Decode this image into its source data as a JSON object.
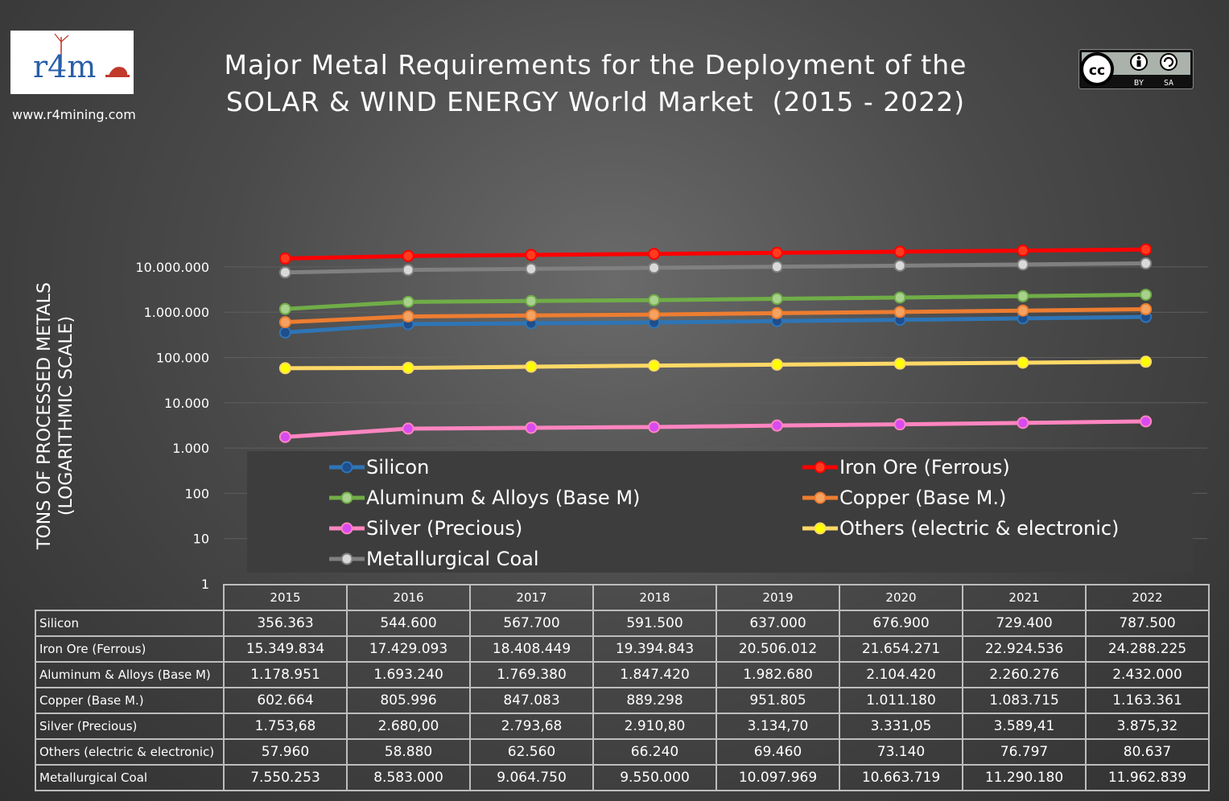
{
  "header": {
    "logo_text": "r4m",
    "website": "www.r4mining.com",
    "title_line1": "Major Metal Requirements for the Deployment of the",
    "title_line2": "SOLAR & WIND ENERGY World Market  (2015 - 2022)",
    "license_text_by": "BY",
    "license_text_sa": "SA"
  },
  "chart_data": {
    "type": "line",
    "title": "Major Metal Requirements for the Deployment of the SOLAR & WIND ENERGY World Market  (2015 - 2022)",
    "ylabel_line1": "TONS OF PROCESSED METALS",
    "ylabel_line2": "(LOGARITHMIC SCALE)",
    "yscale": "log",
    "ylim": [
      1,
      100000000
    ],
    "y_ticks": [
      {
        "value": 1,
        "label": "1"
      },
      {
        "value": 10,
        "label": "10"
      },
      {
        "value": 100,
        "label": "100"
      },
      {
        "value": 1000,
        "label": "1.000"
      },
      {
        "value": 10000,
        "label": "10.000"
      },
      {
        "value": 100000,
        "label": "100.000"
      },
      {
        "value": 1000000,
        "label": "1.000.000"
      },
      {
        "value": 10000000,
        "label": "10.000.000"
      }
    ],
    "grid": true,
    "categories": [
      "2015",
      "2016",
      "2017",
      "2018",
      "2019",
      "2020",
      "2021",
      "2022"
    ],
    "series": [
      {
        "name": "Silicon",
        "color": "#2e75b6",
        "marker_fill": "#1f4e8c",
        "values": [
          356363,
          544600,
          567700,
          591500,
          637000,
          676900,
          729400,
          787500
        ],
        "labels": [
          "356.363",
          "544.600",
          "567.700",
          "591.500",
          "637.000",
          "676.900",
          "729.400",
          "787.500"
        ]
      },
      {
        "name": "Iron Ore (Ferrous)",
        "color": "#ff0000",
        "marker_fill": "#ff3b1f",
        "values": [
          15349834,
          17429093,
          18408449,
          19394843,
          20506012,
          21654271,
          22924536,
          24288225
        ],
        "labels": [
          "15.349.834",
          "17.429.093",
          "18.408.449",
          "19.394.843",
          "20.506.012",
          "21.654.271",
          "22.924.536",
          "24.288.225"
        ]
      },
      {
        "name": "Aluminum & Alloys (Base M)",
        "color": "#70ad47",
        "marker_fill": "#a9d18e",
        "values": [
          1178951,
          1693240,
          1769380,
          1847420,
          1982680,
          2104420,
          2260276,
          2432000
        ],
        "labels": [
          "1.178.951",
          "1.693.240",
          "1.769.380",
          "1.847.420",
          "1.982.680",
          "2.104.420",
          "2.260.276",
          "2.432.000"
        ]
      },
      {
        "name": "Copper (Base M.)",
        "color": "#ed7d31",
        "marker_fill": "#f4a261",
        "values": [
          602664,
          805996,
          847083,
          889298,
          951805,
          1011180,
          1083715,
          1163361
        ],
        "labels": [
          "602.664",
          "805.996",
          "847.083",
          "889.298",
          "951.805",
          "1.011.180",
          "1.083.715",
          "1.163.361"
        ]
      },
      {
        "name": "Silver (Precious)",
        "color": "#ff85c0",
        "marker_fill": "#d84bf0",
        "values": [
          1753.68,
          2680.0,
          2793.68,
          2910.8,
          3134.7,
          3331.05,
          3589.41,
          3875.32
        ],
        "labels": [
          "1.753,68",
          "2.680,00",
          "2.793,68",
          "2.910,80",
          "3.134,70",
          "3.331,05",
          "3.589,41",
          "3.875,32"
        ]
      },
      {
        "name": "Others (electric & electronic)",
        "color": "#ffd966",
        "marker_fill": "#ffff00",
        "values": [
          57960,
          58880,
          62560,
          66240,
          69460,
          73140,
          76797,
          80637
        ],
        "labels": [
          "57.960",
          "58.880",
          "62.560",
          "66.240",
          "69.460",
          "73.140",
          "76.797",
          "80.637"
        ]
      },
      {
        "name": "Metallurgical Coal",
        "color": "#808080",
        "marker_fill": "#d9d9d9",
        "values": [
          7550253,
          8583000,
          9064750,
          9550000,
          10097969,
          10663719,
          11290180,
          11962839
        ],
        "labels": [
          "7.550.253",
          "8.583.000",
          "9.064.750",
          "9.550.000",
          "10.097.969",
          "10.663.719",
          "11.290.180",
          "11.962.839"
        ]
      }
    ],
    "legend_placement": "bottom"
  }
}
